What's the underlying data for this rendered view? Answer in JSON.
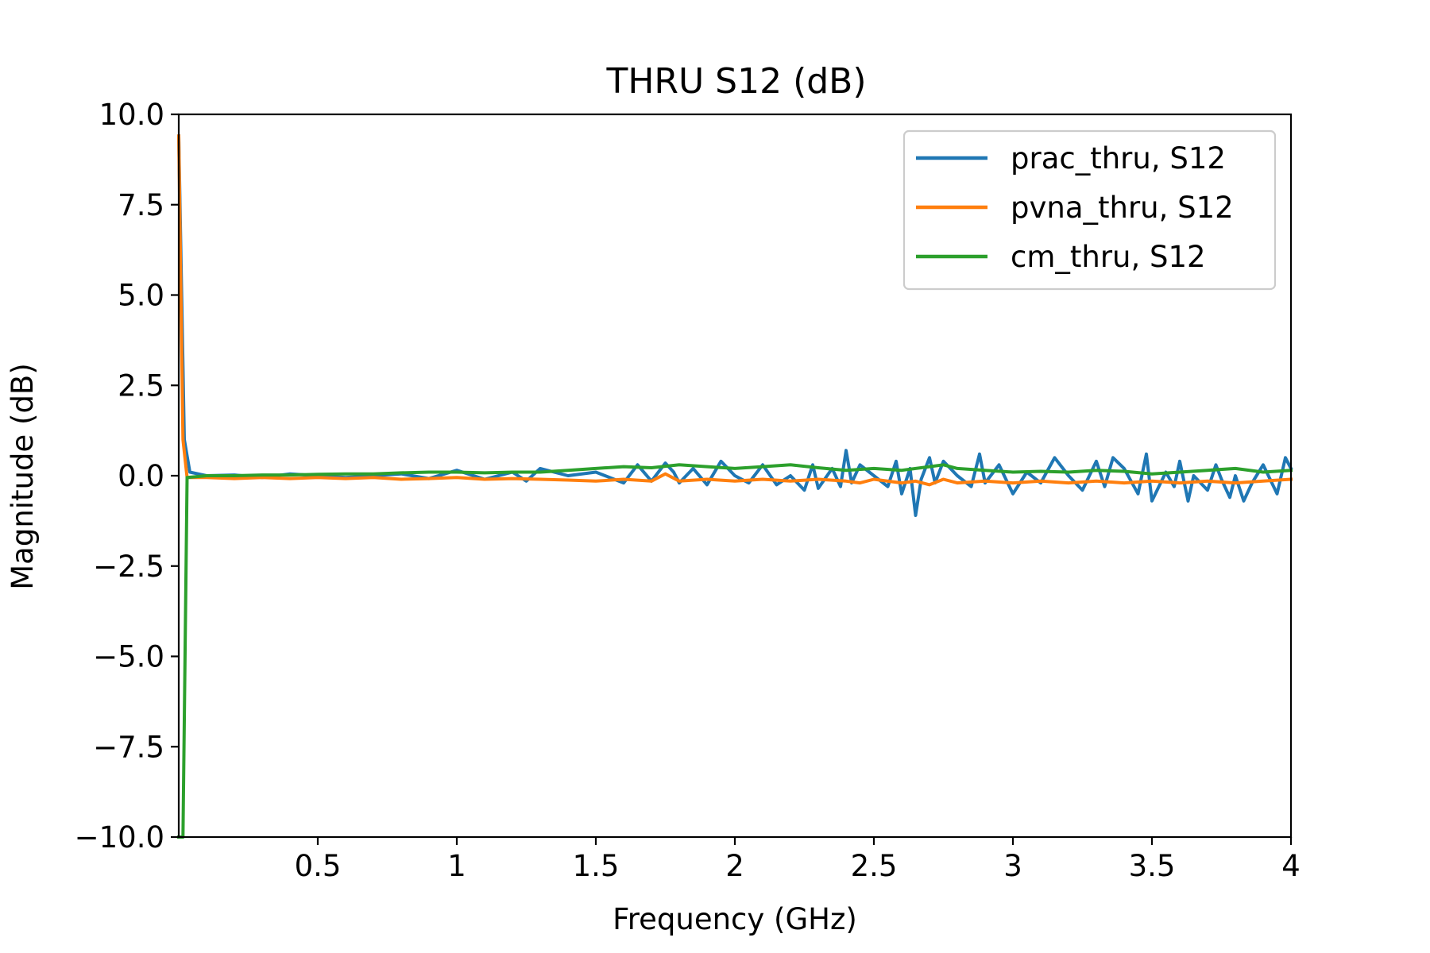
{
  "chart_data": {
    "type": "line",
    "title": "THRU S12 (dB)",
    "xlabel": "Frequency (GHz)",
    "ylabel": "Magnitude (dB)",
    "xlim": [
      0,
      4
    ],
    "ylim": [
      -10,
      10
    ],
    "xticks": [
      0.5,
      1,
      1.5,
      2,
      2.5,
      3,
      3.5,
      4
    ],
    "xtick_labels": [
      "0.5",
      "1",
      "1.5",
      "2",
      "2.5",
      "3",
      "3.5",
      "4"
    ],
    "yticks": [
      -10,
      -7.5,
      -5,
      -2.5,
      0,
      2.5,
      5,
      7.5,
      10
    ],
    "ytick_labels": [
      "−10.0",
      "−7.5",
      "−5.0",
      "−2.5",
      "0.0",
      "2.5",
      "5.0",
      "7.5",
      "10.0"
    ],
    "grid": false,
    "legend_position": "top-right",
    "series": [
      {
        "name": "prac_thru, S12",
        "color": "#1f77b4",
        "x": [
          0.0,
          0.02,
          0.04,
          0.1,
          0.2,
          0.3,
          0.4,
          0.5,
          0.6,
          0.7,
          0.8,
          0.9,
          1.0,
          1.1,
          1.2,
          1.25,
          1.3,
          1.4,
          1.5,
          1.6,
          1.65,
          1.7,
          1.75,
          1.78,
          1.8,
          1.85,
          1.9,
          1.95,
          2.0,
          2.05,
          2.1,
          2.15,
          2.2,
          2.25,
          2.28,
          2.3,
          2.35,
          2.38,
          2.4,
          2.42,
          2.45,
          2.5,
          2.55,
          2.58,
          2.6,
          2.63,
          2.65,
          2.67,
          2.7,
          2.72,
          2.75,
          2.8,
          2.85,
          2.88,
          2.9,
          2.95,
          3.0,
          3.05,
          3.1,
          3.15,
          3.2,
          3.25,
          3.3,
          3.33,
          3.36,
          3.4,
          3.45,
          3.48,
          3.5,
          3.55,
          3.58,
          3.6,
          3.63,
          3.65,
          3.7,
          3.73,
          3.75,
          3.78,
          3.8,
          3.83,
          3.86,
          3.9,
          3.95,
          3.98,
          4.0
        ],
        "y": [
          9.4,
          1.0,
          0.1,
          0.0,
          0.02,
          -0.05,
          0.05,
          0.0,
          -0.05,
          0.0,
          0.05,
          -0.08,
          0.15,
          -0.1,
          0.1,
          -0.15,
          0.2,
          0.0,
          0.1,
          -0.2,
          0.3,
          -0.15,
          0.35,
          0.1,
          -0.2,
          0.2,
          -0.25,
          0.4,
          0.0,
          -0.2,
          0.3,
          -0.25,
          0.0,
          -0.4,
          0.3,
          -0.35,
          0.2,
          -0.3,
          0.7,
          -0.2,
          0.3,
          0.0,
          -0.3,
          0.4,
          -0.5,
          0.2,
          -1.1,
          -0.1,
          0.5,
          -0.2,
          0.4,
          0.0,
          -0.3,
          0.6,
          -0.2,
          0.3,
          -0.5,
          0.1,
          -0.2,
          0.5,
          0.0,
          -0.4,
          0.4,
          -0.3,
          0.5,
          0.2,
          -0.5,
          0.6,
          -0.7,
          0.1,
          -0.3,
          0.4,
          -0.7,
          0.0,
          -0.4,
          0.3,
          -0.1,
          -0.6,
          0.0,
          -0.7,
          -0.2,
          0.3,
          -0.5,
          0.5,
          0.2
        ]
      },
      {
        "name": "pvna_thru, S12",
        "color": "#ff7f0e",
        "x": [
          0.0,
          0.015,
          0.03,
          0.1,
          0.2,
          0.3,
          0.4,
          0.5,
          0.6,
          0.7,
          0.8,
          0.9,
          1.0,
          1.1,
          1.2,
          1.3,
          1.4,
          1.5,
          1.6,
          1.7,
          1.75,
          1.8,
          1.9,
          2.0,
          2.1,
          2.2,
          2.3,
          2.4,
          2.45,
          2.5,
          2.6,
          2.65,
          2.7,
          2.75,
          2.8,
          2.9,
          3.0,
          3.1,
          3.2,
          3.3,
          3.4,
          3.5,
          3.6,
          3.7,
          3.8,
          3.9,
          4.0
        ],
        "y": [
          9.4,
          1.0,
          -0.05,
          -0.05,
          -0.08,
          -0.05,
          -0.08,
          -0.05,
          -0.08,
          -0.05,
          -0.1,
          -0.08,
          -0.05,
          -0.1,
          -0.08,
          -0.1,
          -0.12,
          -0.15,
          -0.1,
          -0.15,
          0.05,
          -0.15,
          -0.1,
          -0.15,
          -0.1,
          -0.15,
          -0.1,
          -0.15,
          -0.2,
          -0.1,
          -0.2,
          -0.15,
          -0.25,
          -0.1,
          -0.2,
          -0.15,
          -0.2,
          -0.15,
          -0.2,
          -0.15,
          -0.2,
          -0.15,
          -0.2,
          -0.15,
          -0.2,
          -0.15,
          -0.1
        ]
      },
      {
        "name": "cm_thru, S12",
        "color": "#2ca02c",
        "x": [
          0.0,
          0.015,
          0.03,
          0.1,
          0.2,
          0.3,
          0.4,
          0.5,
          0.6,
          0.7,
          0.8,
          0.9,
          1.0,
          1.1,
          1.2,
          1.3,
          1.4,
          1.5,
          1.6,
          1.7,
          1.8,
          1.9,
          2.0,
          2.1,
          2.2,
          2.3,
          2.4,
          2.5,
          2.6,
          2.7,
          2.75,
          2.8,
          2.9,
          3.0,
          3.1,
          3.2,
          3.3,
          3.4,
          3.5,
          3.6,
          3.7,
          3.8,
          3.9,
          4.0
        ],
        "y": [
          -10.0,
          -10.0,
          -0.05,
          0.0,
          0.0,
          0.02,
          0.02,
          0.04,
          0.05,
          0.05,
          0.08,
          0.1,
          0.1,
          0.08,
          0.1,
          0.1,
          0.15,
          0.2,
          0.25,
          0.22,
          0.3,
          0.25,
          0.2,
          0.25,
          0.3,
          0.22,
          0.15,
          0.2,
          0.15,
          0.25,
          0.3,
          0.2,
          0.15,
          0.1,
          0.12,
          0.1,
          0.15,
          0.12,
          0.05,
          0.1,
          0.15,
          0.2,
          0.1,
          0.15
        ]
      }
    ]
  }
}
